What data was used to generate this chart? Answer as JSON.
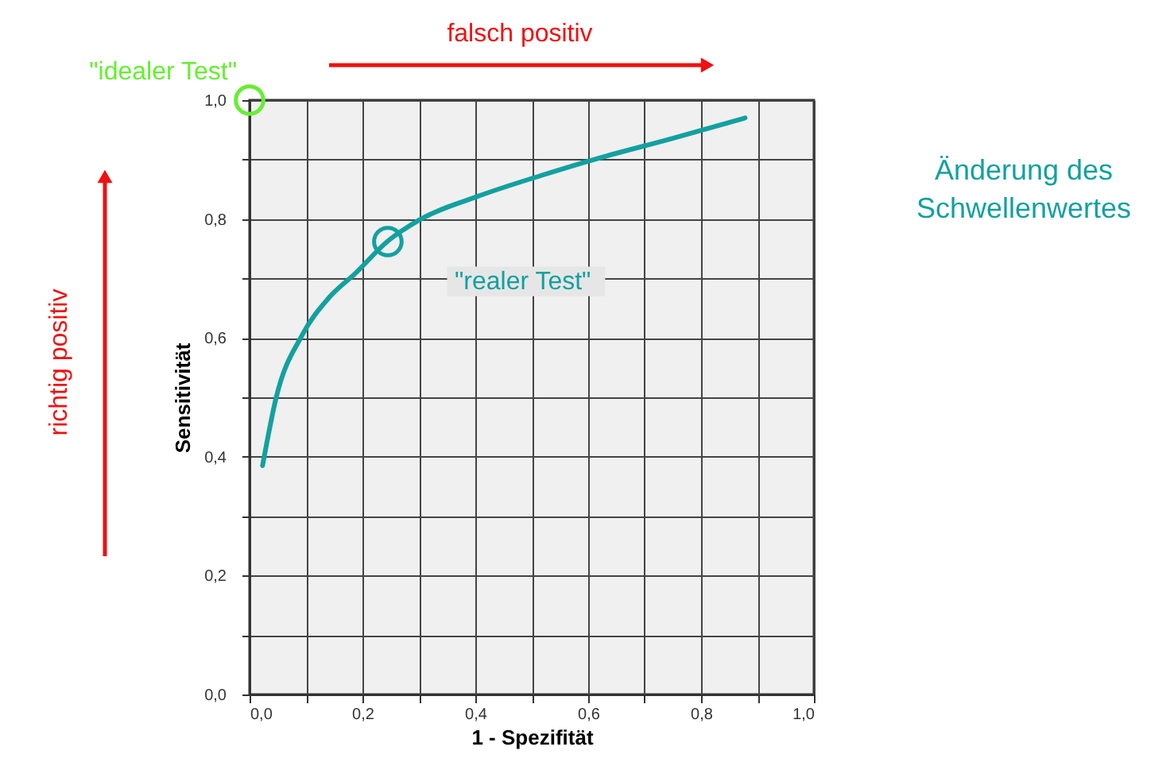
{
  "chart_data": {
    "type": "line",
    "xlabel": "1 - Spezifität",
    "ylabel": "Sensitivität",
    "x": [
      0.023,
      0.047,
      0.094,
      0.141,
      0.188,
      0.244,
      0.3,
      0.404,
      0.516,
      0.61,
      0.751,
      0.878
    ],
    "series": [
      {
        "color": "#14a0a0",
        "values": [
          0.385,
          0.499,
          0.606,
          0.668,
          0.709,
          0.762,
          0.798,
          0.838,
          0.873,
          0.9,
          0.936,
          0.97
        ]
      }
    ],
    "xlim": [
      0,
      1
    ],
    "ylim": [
      0,
      1
    ],
    "xticks": [
      {
        "value": 0,
        "label": "0,0"
      },
      {
        "value": 0.1,
        "label": null
      },
      {
        "value": 0.2,
        "label": "0,2"
      },
      {
        "value": 0.3,
        "label": null
      },
      {
        "value": 0.4,
        "label": "0,4"
      },
      {
        "value": 0.5,
        "label": null
      },
      {
        "value": 0.6,
        "label": "0,6"
      },
      {
        "value": 0.7,
        "label": null
      },
      {
        "value": 0.8,
        "label": "0,8"
      },
      {
        "value": 0.9,
        "label": null
      },
      {
        "value": 1,
        "label": "1,0"
      }
    ],
    "yticks": [
      {
        "value": 0,
        "label": "0,0"
      },
      {
        "value": 0.1,
        "label": null
      },
      {
        "value": 0.2,
        "label": "0,2"
      },
      {
        "value": 0.3,
        "label": null
      },
      {
        "value": 0.4,
        "label": "0,4"
      },
      {
        "value": 0.5,
        "label": null
      },
      {
        "value": 0.6,
        "label": "0,6"
      },
      {
        "value": 0.7,
        "label": null
      },
      {
        "value": 0.8,
        "label": "0,8"
      },
      {
        "value": 0.9,
        "label": null
      },
      {
        "value": 1,
        "label": "1,0"
      }
    ],
    "grid": true,
    "annotations": [
      {
        "text": "\"idealer Test\"",
        "x": 0,
        "y": 1
      },
      {
        "text": "\"realer Test\"",
        "x": 0.245,
        "y": 0.762
      },
      "falsch positiv",
      "richtig positiv",
      "Änderung des\nSchwellenwertes"
    ]
  }
}
